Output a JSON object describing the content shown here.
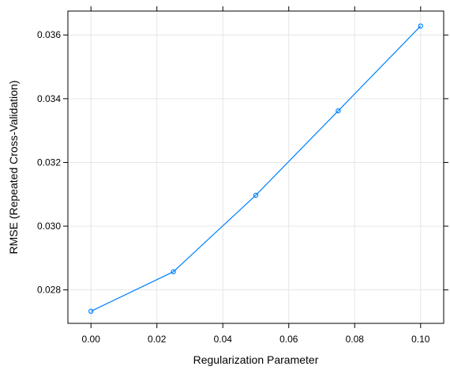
{
  "chart_data": {
    "type": "line",
    "title": "",
    "xlabel": "Regularization Parameter",
    "ylabel": "RMSE (Repeated Cross-Validation)",
    "xlim": [
      -0.007,
      0.107
    ],
    "ylim": [
      0.02695,
      0.03675
    ],
    "x_ticks": [
      0.0,
      0.02,
      0.04,
      0.06,
      0.08,
      0.1
    ],
    "x_tick_labels": [
      "0.00",
      "0.02",
      "0.04",
      "0.06",
      "0.08",
      "0.10"
    ],
    "y_ticks": [
      0.028,
      0.03,
      0.032,
      0.034,
      0.036
    ],
    "y_tick_labels": [
      "0.028",
      "0.030",
      "0.032",
      "0.034",
      "0.036"
    ],
    "grid": true,
    "series": [
      {
        "x": [
          0.0,
          0.025,
          0.05,
          0.075,
          0.1
        ],
        "y": [
          0.02733,
          0.02857,
          0.03097,
          0.03362,
          0.03628
        ],
        "color": "#0080ff"
      }
    ]
  }
}
